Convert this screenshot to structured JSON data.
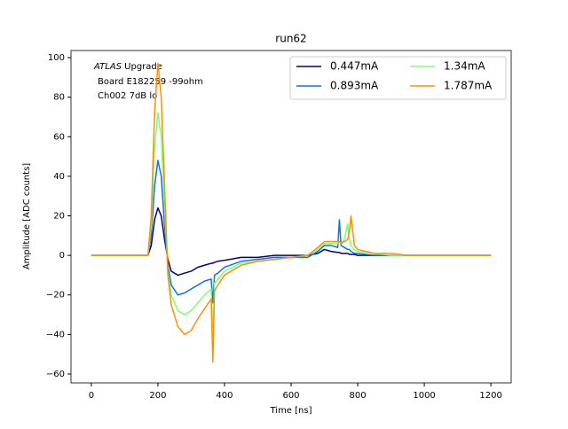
{
  "chart_data": {
    "type": "line",
    "title": "run62",
    "xlabel": "Time [ns]",
    "ylabel": "Amplitude [ADC counts]",
    "annotation": [
      "ATLAS",
      "Upgrade",
      "Board E182259 -99ohm",
      "Ch002 7dB lo"
    ],
    "x": [
      0,
      170,
      180,
      190,
      200,
      210,
      220,
      230,
      240,
      260,
      280,
      300,
      320,
      340,
      360,
      365,
      370,
      380,
      400,
      450,
      500,
      550,
      600,
      650,
      680,
      700,
      720,
      740,
      745,
      750,
      760,
      770,
      775,
      780,
      790,
      800,
      850,
      900,
      950,
      1000,
      1200
    ],
    "series": [
      {
        "name": "0.447mA",
        "color": "#00007f",
        "values": [
          0,
          0,
          5,
          18,
          24,
          20,
          8,
          -2,
          -8,
          -10,
          -9,
          -8,
          -6,
          -5,
          -4,
          -4,
          -3.5,
          -3,
          -2.5,
          -1,
          -1,
          0,
          0,
          0,
          1,
          3,
          2,
          1.5,
          1.5,
          1,
          1,
          1,
          0.5,
          0.5,
          0.5,
          0,
          0,
          0,
          0,
          0,
          0
        ]
      },
      {
        "name": "0.893mA",
        "color": "#0f70f0",
        "values": [
          0,
          0,
          10,
          35,
          48,
          40,
          15,
          -5,
          -15,
          -20,
          -19,
          -17,
          -15,
          -13,
          -12,
          -24,
          -10,
          -9,
          -6,
          -3,
          -2,
          -1,
          -1,
          -1,
          2,
          5,
          5,
          4,
          18,
          5,
          4,
          3,
          3,
          2,
          1,
          1,
          0,
          0,
          0,
          0,
          0
        ]
      },
      {
        "name": "1.34mA",
        "color": "#80ff77",
        "values": [
          0,
          0,
          15,
          55,
          72,
          60,
          25,
          -8,
          -20,
          -28,
          -30,
          -28,
          -24,
          -20,
          -17,
          -45,
          -14,
          -12,
          -8,
          -4,
          -3,
          -2,
          -1,
          0,
          3,
          6,
          6,
          6,
          7,
          6,
          8,
          16,
          8,
          5,
          3,
          2,
          1,
          0,
          0,
          0,
          0
        ]
      },
      {
        "name": "1.787mA",
        "color": "#ff9000",
        "values": [
          0,
          0,
          20,
          72,
          97,
          80,
          35,
          -10,
          -25,
          -36,
          -40,
          -38,
          -32,
          -27,
          -22,
          -54,
          -18,
          -15,
          -10,
          -5,
          -3,
          -2,
          -1,
          0,
          4,
          7,
          7,
          7,
          7,
          6,
          7,
          8,
          12,
          20,
          5,
          3,
          1,
          1,
          0,
          0,
          0
        ]
      }
    ],
    "xlim": [
      -61,
      1261
    ],
    "ylim": [
      -64.5,
      103.6
    ],
    "xticks": [
      0,
      200,
      400,
      600,
      800,
      1000,
      1200
    ],
    "yticks": [
      {
        "value": -60,
        "label": "−60"
      },
      {
        "value": -40,
        "label": "−40"
      },
      {
        "value": -20,
        "label": "−20"
      },
      0,
      20,
      40,
      60,
      80,
      100
    ],
    "grid": false,
    "legend": "upper right"
  }
}
